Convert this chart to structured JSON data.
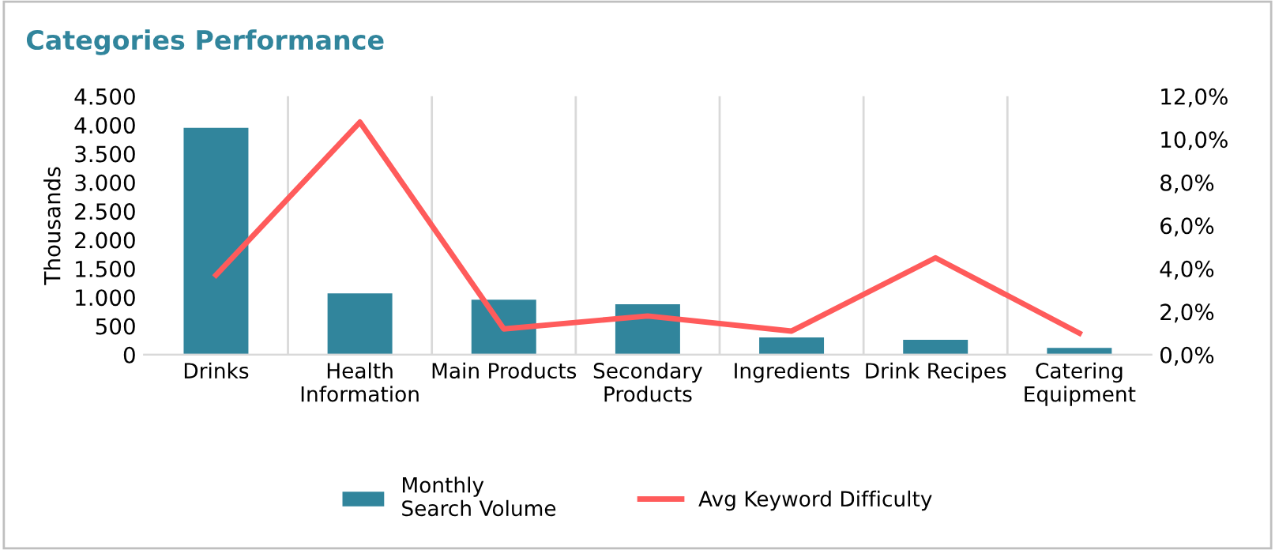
{
  "chart_data": {
    "type": "bar",
    "title": "Categories Performance",
    "ylabel": "Thousands",
    "categories": [
      "Drinks",
      "Health\nInformation",
      "Main Products",
      "Secondary\nProducts",
      "Ingredients",
      "Drink Recipes",
      "Catering\nEquipment"
    ],
    "series": [
      {
        "name": "Monthly\nSearch Volume",
        "color": "#31859c",
        "values": [
          3950,
          1070,
          960,
          880,
          300,
          260,
          120
        ]
      },
      {
        "name": "Avg Keyword Difficulty",
        "type": "line",
        "axis": "y2",
        "color": "#ff5b5b",
        "values": [
          3.7,
          10.8,
          1.2,
          1.8,
          1.1,
          4.5,
          1.0
        ]
      }
    ],
    "ylim": [
      0,
      4500
    ],
    "yticks": [
      0,
      500,
      {
        "value": 1000,
        "label": "1.000"
      },
      {
        "value": 1500,
        "label": "1.500"
      },
      {
        "value": 2000,
        "label": "2.000"
      },
      {
        "value": 2500,
        "label": "2.500"
      },
      {
        "value": 3000,
        "label": "3.000"
      },
      {
        "value": 3500,
        "label": "3.500"
      },
      {
        "value": 4000,
        "label": "4.000"
      },
      {
        "value": 4500,
        "label": "4.500"
      }
    ],
    "y2lim": [
      0,
      12
    ],
    "y2ticks": [
      {
        "value": 0,
        "label": "0,0%"
      },
      {
        "value": 2,
        "label": "2,0%"
      },
      {
        "value": 4,
        "label": "4,0%"
      },
      {
        "value": 6,
        "label": "6,0%"
      },
      {
        "value": 8,
        "label": "8,0%"
      },
      {
        "value": 10,
        "label": "10,0%"
      },
      {
        "value": 12,
        "label": "12,0%"
      }
    ],
    "grid": "x",
    "legend": "bottom"
  }
}
